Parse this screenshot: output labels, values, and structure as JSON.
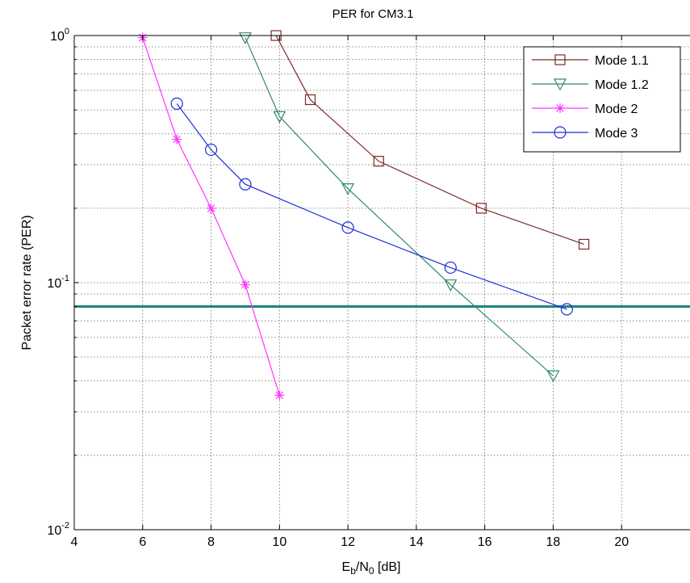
{
  "chart_data": {
    "type": "line",
    "title": "PER for CM3.1",
    "xlabel": {
      "main": "E",
      "sub1": "b",
      "mid": "/N",
      "sub2": "0",
      "tail": " [dB]"
    },
    "ylabel": "Packet error rate (PER)",
    "xlim": [
      4,
      22
    ],
    "ylim": [
      0.01,
      1
    ],
    "y_scale": "log",
    "grid": true,
    "legend_position": "top-right",
    "x_ticks": [
      4,
      6,
      8,
      10,
      12,
      14,
      16,
      18,
      20
    ],
    "y_ticks": [
      {
        "base": "10",
        "exp": "-2",
        "value": 0.01
      },
      {
        "base": "10",
        "exp": "-1",
        "value": 0.1
      },
      {
        "base": "10",
        "exp": "0",
        "value": 1
      }
    ],
    "series": [
      {
        "name": "Mode 1.1",
        "color": "#7b2a2a",
        "marker": "square",
        "x": [
          9.9,
          10.9,
          12.9,
          15.9,
          18.9
        ],
        "y": [
          1.0,
          0.55,
          0.31,
          0.2,
          0.143
        ]
      },
      {
        "name": "Mode 1.2",
        "color": "#2e8b6b",
        "marker": "triangle-down",
        "x": [
          9.0,
          10.0,
          12.0,
          15.0,
          18.0
        ],
        "y": [
          0.98,
          0.47,
          0.24,
          0.098,
          0.042
        ]
      },
      {
        "name": "Mode 2",
        "color": "#ff33ff",
        "marker": "star",
        "x": [
          6.0,
          7.0,
          8.0,
          9.0,
          10.0
        ],
        "y": [
          0.98,
          0.38,
          0.2,
          0.098,
          0.035
        ]
      },
      {
        "name": "Mode 3",
        "color": "#1f2fd6",
        "marker": "circle",
        "x": [
          7.0,
          8.0,
          9.0,
          12.0,
          15.0,
          18.4
        ],
        "y": [
          0.53,
          0.345,
          0.25,
          0.167,
          0.115,
          0.078
        ]
      }
    ],
    "threshold_line": {
      "y": 0.08,
      "color": "#1a8080"
    }
  }
}
